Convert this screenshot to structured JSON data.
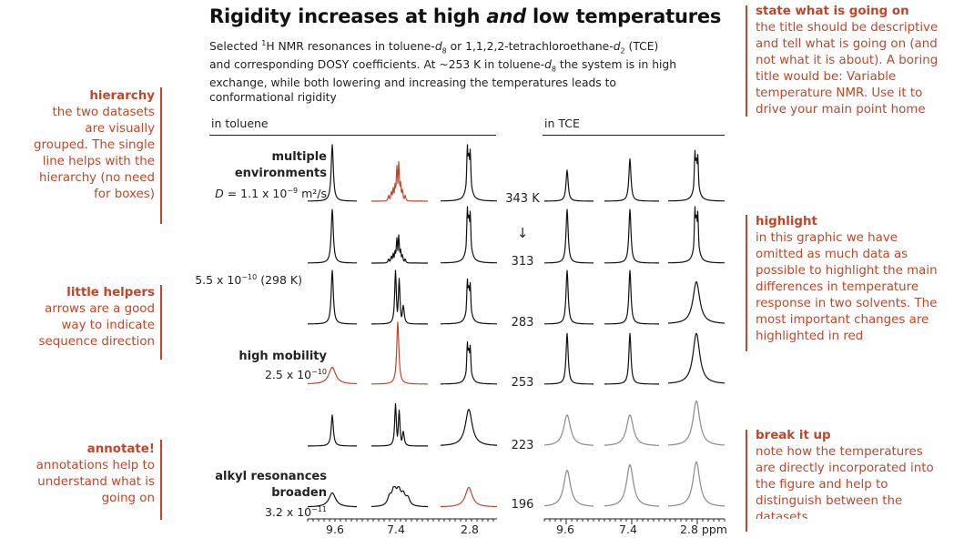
{
  "title": {
    "pre": "Rigidity increases at high ",
    "em": "and",
    "post": " low temperatures"
  },
  "subtitle": {
    "l1a": "Selected ",
    "l1sup": "1",
    "l1b": "H NMR resonances in toluene-",
    "l1c": "d",
    "l1d": "8",
    "l1e": " or 1,1,2,2-tetrachloroethane-",
    "l1f": "d",
    "l1g": "2",
    "l1h": " (TCE)",
    "l2": "and corresponding DOSY coefficients. At ~253 K in toluene-",
    "l2b": "d",
    "l2c": "8",
    "l2d": " the system is in high",
    "l3": "exchange, while both lowering and increasing the temperatures leads to",
    "l4": "conformational rigidity"
  },
  "sections": {
    "toluene": "in toluene",
    "tce": "in TCE"
  },
  "row_labels": {
    "multi1": "multiple",
    "multi2": "environments",
    "d_pre": "D",
    "d_val": " = 1.1 x 10",
    "d_exp": "−9",
    "d_unit": " m²/s",
    "r2_val": "5.5 x 10",
    "r2_exp": "−10",
    "r2_t": " (298 K)",
    "hm": "high mobility",
    "hm_val": "2.5 x 10",
    "hm_exp": "−10",
    "alk1": "alkyl resonances",
    "alk2": "broaden",
    "alk_val": "3.2 x 10",
    "alk_exp": "−11"
  },
  "temperatures": [
    "343 K",
    "313",
    "283",
    "253",
    "223",
    "196"
  ],
  "arrow": "↓",
  "ticks_left": [
    "9.6",
    "7.4",
    "2.8"
  ],
  "ticks_right": [
    "9.6",
    "7.4",
    "2.8 ppm"
  ],
  "left_notes": [
    {
      "head": "hierarchy",
      "lines": [
        "the two datasets",
        "are visually",
        "grouped. The single",
        "line helps with the",
        "hierarchy (no need",
        "for boxes)"
      ]
    },
    {
      "head": "little helpers",
      "lines": [
        "arrows are a good",
        "way to indicate",
        "sequence direction"
      ]
    },
    {
      "head": "annotate!",
      "lines": [
        "annotations help to",
        "understand what is",
        "going on"
      ]
    }
  ],
  "right_notes": [
    {
      "head": "state what is going on",
      "lines": [
        "the title should be descriptive",
        "and tell what is going on (and",
        "not what it is about). A boring",
        "title would be: Variable",
        "temperature NMR. Use it to",
        "drive your main point home"
      ]
    },
    {
      "head": "highlight",
      "lines": [
        "in this graphic we have",
        "omitted as much data as",
        "possible to highlight the main",
        "differences in temperature",
        "response in two solvents. The",
        "most important changes are",
        "highlighted in red"
      ]
    },
    {
      "head": "break it up",
      "lines": [
        "note how the temperatures",
        "are directly incorporated into",
        "the figure and help to",
        "distinguish between the",
        "datasets"
      ]
    }
  ],
  "colors": {
    "accent": "#c0462a",
    "ink": "#111111",
    "gray": "#8a8a8a"
  },
  "spectra": {
    "toluene": [
      [
        {
          "shape": "sharp",
          "h": 1.0,
          "c": "ink"
        },
        {
          "shape": "multi",
          "h": 0.7,
          "c": "accent"
        },
        {
          "shape": "split",
          "h": 1.0,
          "c": "ink"
        }
      ],
      [
        {
          "shape": "sharp",
          "h": 0.95,
          "c": "ink"
        },
        {
          "shape": "multi",
          "h": 0.5,
          "c": "ink"
        },
        {
          "shape": "split",
          "h": 1.0,
          "c": "ink"
        }
      ],
      [
        {
          "shape": "sharp",
          "h": 0.95,
          "c": "ink"
        },
        {
          "shape": "twin",
          "h": 0.95,
          "c": "ink"
        },
        {
          "shape": "split",
          "h": 0.8,
          "c": "ink"
        }
      ],
      [
        {
          "shape": "broad",
          "h": 0.3,
          "c": "accent"
        },
        {
          "shape": "sharp",
          "h": 1.1,
          "c": "accent"
        },
        {
          "shape": "split",
          "h": 0.75,
          "c": "ink"
        }
      ],
      [
        {
          "shape": "sharp",
          "h": 0.55,
          "c": "ink"
        },
        {
          "shape": "twin",
          "h": 0.75,
          "c": "ink"
        },
        {
          "shape": "broad",
          "h": 0.65,
          "c": "ink"
        }
      ],
      [
        {
          "shape": "broad",
          "h": 0.25,
          "c": "ink"
        },
        {
          "shape": "bumps",
          "h": 0.3,
          "c": "ink"
        },
        {
          "shape": "broad",
          "h": 0.35,
          "c": "accent"
        }
      ]
    ],
    "tce": [
      [
        {
          "shape": "sharp",
          "h": 0.55,
          "c": "ink"
        },
        {
          "shape": "sharp",
          "h": 0.75,
          "c": "ink"
        },
        {
          "shape": "split",
          "h": 0.9,
          "c": "ink"
        }
      ],
      [
        {
          "shape": "sharp",
          "h": 0.95,
          "c": "ink"
        },
        {
          "shape": "sharp",
          "h": 0.95,
          "c": "ink"
        },
        {
          "shape": "split",
          "h": 1.0,
          "c": "ink"
        }
      ],
      [
        {
          "shape": "sharp",
          "h": 0.95,
          "c": "ink"
        },
        {
          "shape": "sharp",
          "h": 0.95,
          "c": "ink"
        },
        {
          "shape": "broad",
          "h": 0.75,
          "c": "ink"
        }
      ],
      [
        {
          "shape": "sharp",
          "h": 0.9,
          "c": "ink"
        },
        {
          "shape": "sharp",
          "h": 0.9,
          "c": "ink"
        },
        {
          "shape": "broad",
          "h": 0.9,
          "c": "ink"
        }
      ],
      [
        {
          "shape": "broad",
          "h": 0.55,
          "c": "gray"
        },
        {
          "shape": "broad",
          "h": 0.55,
          "c": "gray"
        },
        {
          "shape": "broad",
          "h": 0.8,
          "c": "gray"
        }
      ],
      [
        {
          "shape": "broad",
          "h": 0.65,
          "c": "gray"
        },
        {
          "shape": "broad",
          "h": 0.75,
          "c": "gray"
        },
        {
          "shape": "broad",
          "h": 0.8,
          "c": "gray"
        }
      ]
    ]
  }
}
